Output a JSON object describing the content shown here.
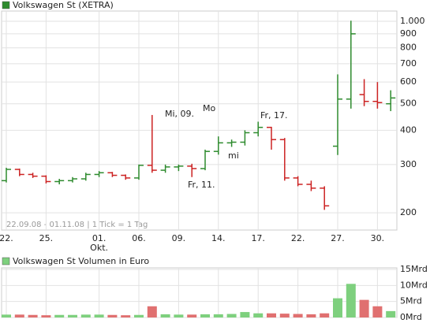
{
  "chart_data": [
    {
      "type": "ohlc",
      "categories": [
        "22.",
        null,
        null,
        "25.",
        null,
        null,
        null,
        "01.",
        null,
        null,
        "06.",
        null,
        null,
        "09.",
        null,
        null,
        "14.",
        null,
        null,
        "17.",
        null,
        null,
        "22.",
        null,
        null,
        "27.",
        null,
        null,
        "30.",
        null
      ],
      "month_label": "Okt.",
      "subtitle": "22.09.08 - 01.11.08 | 1 Tick = 1 Tag",
      "annotations": [
        "Mi, 09.",
        "Mo",
        "Fr, 11.",
        "mi",
        "Fr, 17."
      ],
      "series": [
        {
          "name": "Volkswagen St (XETRA)",
          "color": "#2e8b2e",
          "down_color": "#cc2222",
          "open": [
            262,
            288,
            276,
            272,
            260,
            262,
            266,
            276,
            280,
            274,
            268,
            298,
            286,
            294,
            296,
            290,
            335,
            360,
            362,
            392,
            410,
            370,
            268,
            254,
            246,
            350,
            520,
            540,
            510,
            500
          ],
          "high": [
            292,
            290,
            280,
            274,
            266,
            270,
            280,
            284,
            282,
            276,
            300,
            455,
            300,
            300,
            302,
            340,
            380,
            370,
            400,
            430,
            412,
            375,
            272,
            262,
            250,
            640,
            1005,
            615,
            600,
            560
          ],
          "low": [
            258,
            272,
            268,
            256,
            254,
            258,
            262,
            270,
            270,
            264,
            264,
            280,
            280,
            284,
            270,
            286,
            326,
            348,
            352,
            380,
            340,
            262,
            250,
            240,
            205,
            325,
            480,
            490,
            480,
            470
          ],
          "close": [
            288,
            276,
            272,
            260,
            262,
            266,
            276,
            280,
            274,
            268,
            298,
            286,
            294,
            296,
            290,
            335,
            360,
            362,
            392,
            410,
            370,
            268,
            254,
            246,
            212,
            520,
            900,
            510,
            505,
            525
          ]
        }
      ],
      "log_scale": true,
      "ylim": [
        173,
        1090
      ],
      "yticks": [
        200,
        300,
        400,
        500,
        600,
        700,
        800,
        900,
        {
          "value": 1000,
          "label": "1.000"
        }
      ],
      "grid": true
    },
    {
      "type": "bar",
      "series": [
        {
          "name": "Volkswagen St Volumen in Euro",
          "color": "#7ed07e",
          "down_color": "#e07070",
          "values": [
            0.9,
            0.9,
            0.8,
            0.7,
            0.8,
            0.8,
            0.9,
            0.9,
            0.8,
            0.7,
            0.8,
            3.5,
            1.0,
            0.9,
            0.9,
            1.0,
            1.0,
            1.1,
            1.7,
            1.3,
            1.3,
            1.2,
            1.1,
            1.0,
            1.3,
            6.0,
            10.5,
            5.5,
            3.5,
            2.0
          ]
        }
      ],
      "ylim": [
        0,
        15.5
      ],
      "yticks": [
        {
          "value": 0,
          "label": "0Mrd"
        },
        {
          "value": 5,
          "label": "5Mrd"
        },
        {
          "value": 10,
          "label": "10Mrd"
        },
        {
          "value": 15,
          "label": "15Mrd"
        }
      ],
      "grid": true
    }
  ]
}
